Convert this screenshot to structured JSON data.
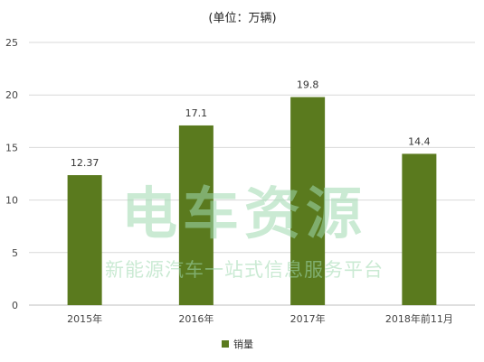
{
  "chart_data": {
    "type": "bar",
    "title": "(单位：万辆)",
    "categories": [
      "2015年",
      "2016年",
      "2017年",
      "2018年前11月"
    ],
    "series": [
      {
        "name": "销量",
        "values": [
          12.37,
          17.1,
          19.8,
          14.4
        ],
        "data_labels": [
          "12.37",
          "17.1",
          "19.8",
          "14.4"
        ]
      }
    ],
    "ylim": [
      0,
      25
    ],
    "yticks": [
      "0",
      "5",
      "10",
      "15",
      "20",
      "25"
    ],
    "ytick_values": [
      0,
      5,
      10,
      15,
      20,
      25
    ],
    "grid": true,
    "legend": "bottom",
    "colors": {
      "bar": "#5a7a1e",
      "grid": "#d9d9d9",
      "watermark": "#9fd9b0"
    }
  },
  "watermark": {
    "main": "电车资源",
    "sub": "新能源汽车一站式信息服务平台"
  }
}
